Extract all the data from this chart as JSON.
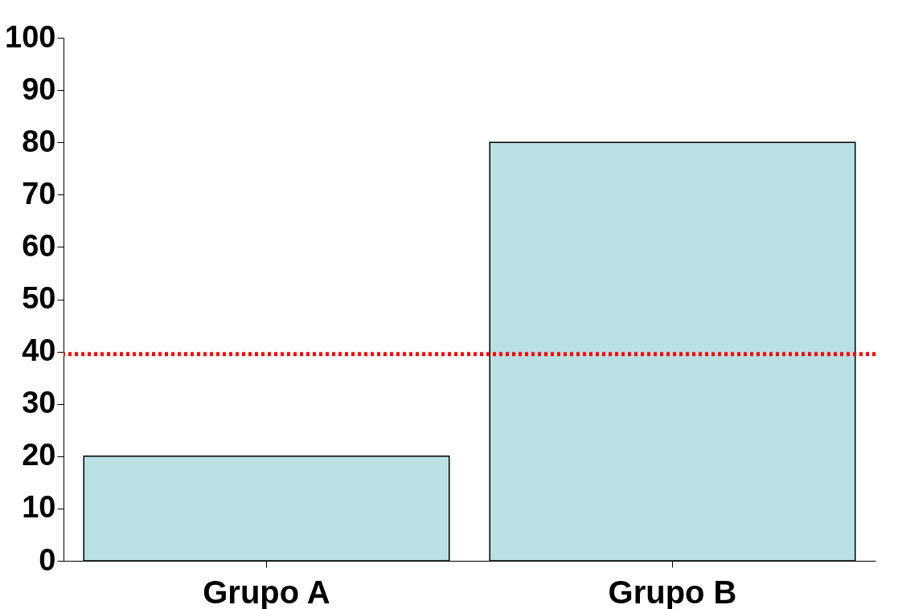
{
  "chart_data": {
    "type": "bar",
    "categories": [
      "Grupo A",
      "Grupo B"
    ],
    "values": [
      20,
      80
    ],
    "color": "#b9e0e3",
    "ylim": [
      0,
      100
    ],
    "yticks": [
      0,
      10,
      20,
      30,
      40,
      50,
      60,
      70,
      80,
      90,
      100
    ],
    "grid": false,
    "ref_lines": [
      {
        "axis": "y",
        "value": 39.5,
        "label": null,
        "color": "#ff0000",
        "line_style": "dotted"
      }
    ]
  }
}
